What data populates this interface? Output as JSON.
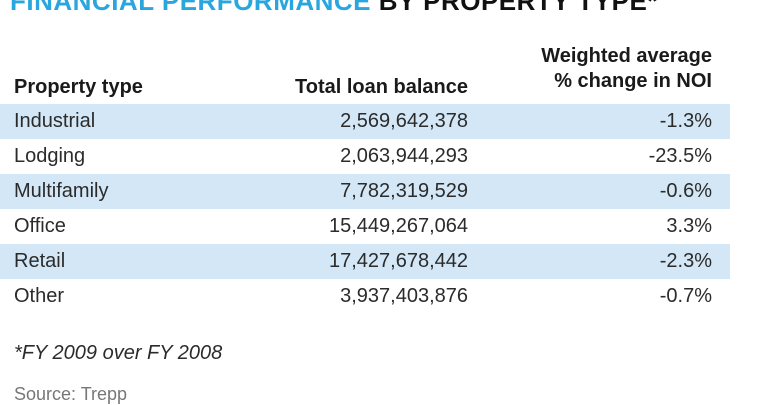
{
  "title": {
    "highlight": "FINANCIAL PERFORMANCE",
    "rest": " BY PROPERTY TYPE*"
  },
  "chart_data": {
    "type": "table",
    "columns": [
      "Property type",
      "Total loan balance",
      "Weighted average % change in NOI"
    ],
    "column_header_lines": {
      "noi_line1": "Weighted average",
      "noi_line2": "% change in NOI"
    },
    "rows": [
      {
        "type": "Industrial",
        "loan_balance": "2,569,642,378",
        "noi_change": "-1.3%"
      },
      {
        "type": "Lodging",
        "loan_balance": "2,063,944,293",
        "noi_change": "-23.5%"
      },
      {
        "type": "Multifamily",
        "loan_balance": "7,782,319,529",
        "noi_change": "-0.6%"
      },
      {
        "type": "Office",
        "loan_balance": "15,449,267,064",
        "noi_change": "3.3%"
      },
      {
        "type": "Retail",
        "loan_balance": "17,427,678,442",
        "noi_change": "-2.3%"
      },
      {
        "type": "Other",
        "loan_balance": "3,937,403,876",
        "noi_change": "-0.7%"
      }
    ],
    "footnote": "*FY 2009 over FY 2008",
    "source": "Source: Trepp"
  },
  "colors": {
    "title_highlight": "#2aa6df",
    "row_band": "#d3e7f6"
  }
}
